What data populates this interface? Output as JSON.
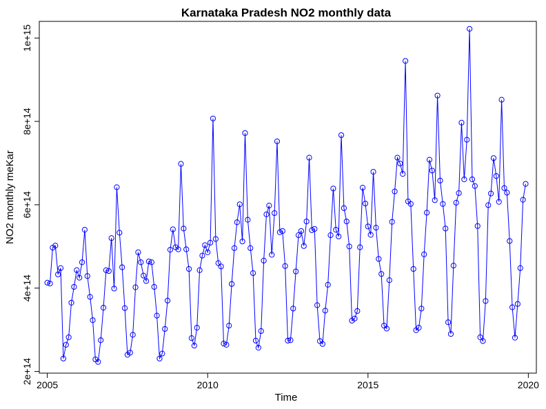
{
  "chart_data": {
    "type": "line",
    "title": "Karnataka Pradesh NO2 monthly data",
    "xlabel": "Time",
    "ylabel": "NO2 monthly meKar",
    "xlim": [
      2004.75,
      2020.25
    ],
    "ylim": [
      196000000000000.0,
      1040000000000000.0
    ],
    "x_ticks": [
      2005,
      2010,
      2015,
      2020
    ],
    "x_tick_labels": [
      "2005",
      "2010",
      "2015",
      "2020"
    ],
    "y_ticks": [
      200000000000000.0,
      400000000000000.0,
      600000000000000.0,
      800000000000000.0,
      1000000000000000.0
    ],
    "y_tick_labels": [
      "2e+14",
      "4e+14",
      "6e+14",
      "8e+14",
      "1e+15"
    ],
    "grid": false,
    "color": "#0000ff",
    "marker": "open-circle",
    "series": [
      {
        "start_year": 2005,
        "frequency": 12,
        "values": [
          413000000000000.0,
          411000000000000.0,
          497000000000000.0,
          502000000000000.0,
          433000000000000.0,
          448000000000000.0,
          231000000000000.0,
          264000000000000.0,
          282000000000000.0,
          365000000000000.0,
          403000000000000.0,
          443000000000000.0,
          425000000000000.0,
          462000000000000.0,
          540000000000000.0,
          429000000000000.0,
          379000000000000.0,
          323000000000000.0,
          229000000000000.0,
          223000000000000.0,
          275000000000000.0,
          353000000000000.0,
          443000000000000.0,
          441000000000000.0,
          520000000000000.0,
          399000000000000.0,
          642000000000000.0,
          533000000000000.0,
          450000000000000.0,
          352000000000000.0,
          240000000000000.0,
          245000000000000.0,
          288000000000000.0,
          402000000000000.0,
          486000000000000.0,
          462000000000000.0,
          430000000000000.0,
          417000000000000.0,
          464000000000000.0,
          462000000000000.0,
          403000000000000.0,
          334000000000000.0,
          231000000000000.0,
          243000000000000.0,
          302000000000000.0,
          370000000000000.0,
          492000000000000.0,
          541000000000000.0,
          498000000000000.0,
          493000000000000.0,
          698000000000000.0,
          543000000000000.0,
          493000000000000.0,
          446000000000000.0,
          280000000000000.0,
          262000000000000.0,
          305000000000000.0,
          443000000000000.0,
          478000000000000.0,
          503000000000000.0,
          486000000000000.0,
          509000000000000.0,
          807000000000000.0,
          518000000000000.0,
          460000000000000.0,
          452000000000000.0,
          267000000000000.0,
          264000000000000.0,
          310000000000000.0,
          410000000000000.0,
          496000000000000.0,
          558000000000000.0,
          601000000000000.0,
          512000000000000.0,
          772000000000000.0,
          564000000000000.0,
          496000000000000.0,
          436000000000000.0,
          274000000000000.0,
          257000000000000.0,
          297000000000000.0,
          466000000000000.0,
          577000000000000.0,
          598000000000000.0,
          480000000000000.0,
          580000000000000.0,
          752000000000000.0,
          534000000000000.0,
          537000000000000.0,
          453000000000000.0,
          274000000000000.0,
          275000000000000.0,
          351000000000000.0,
          440000000000000.0,
          527000000000000.0,
          537000000000000.0,
          501000000000000.0,
          560000000000000.0,
          713000000000000.0,
          539000000000000.0,
          542000000000000.0,
          359000000000000.0,
          273000000000000.0,
          266000000000000.0,
          346000000000000.0,
          408000000000000.0,
          527000000000000.0,
          639000000000000.0,
          540000000000000.0,
          524000000000000.0,
          767000000000000.0,
          592000000000000.0,
          560000000000000.0,
          500000000000000.0,
          322000000000000.0,
          327000000000000.0,
          345000000000000.0,
          498000000000000.0,
          641000000000000.0,
          603000000000000.0,
          548000000000000.0,
          528000000000000.0,
          679000000000000.0,
          545000000000000.0,
          470000000000000.0,
          434000000000000.0,
          310000000000000.0,
          303000000000000.0,
          419000000000000.0,
          559000000000000.0,
          632000000000000.0,
          713000000000000.0,
          699000000000000.0,
          674000000000000.0,
          945000000000000.0,
          608000000000000.0,
          602000000000000.0,
          446000000000000.0,
          299000000000000.0,
          305000000000000.0,
          351000000000000.0,
          481000000000000.0,
          581000000000000.0,
          708000000000000.0,
          682000000000000.0,
          611000000000000.0,
          862000000000000.0,
          658000000000000.0,
          602000000000000.0,
          543000000000000.0,
          318000000000000.0,
          290000000000000.0,
          454000000000000.0,
          605000000000000.0,
          628000000000000.0,
          797000000000000.0,
          661000000000000.0,
          756000000000000.0,
          1022000000000000.0,
          661000000000000.0,
          645000000000000.0,
          549000000000000.0,
          282000000000000.0,
          273000000000000.0,
          369000000000000.0,
          599000000000000.0,
          627000000000000.0,
          712000000000000.0,
          669000000000000.0,
          607000000000000.0,
          852000000000000.0,
          640000000000000.0,
          629000000000000.0,
          513000000000000.0,
          354000000000000.0,
          281000000000000.0,
          362000000000000.0,
          448000000000000.0,
          612000000000000.0,
          650000000000000.0
        ]
      }
    ]
  }
}
